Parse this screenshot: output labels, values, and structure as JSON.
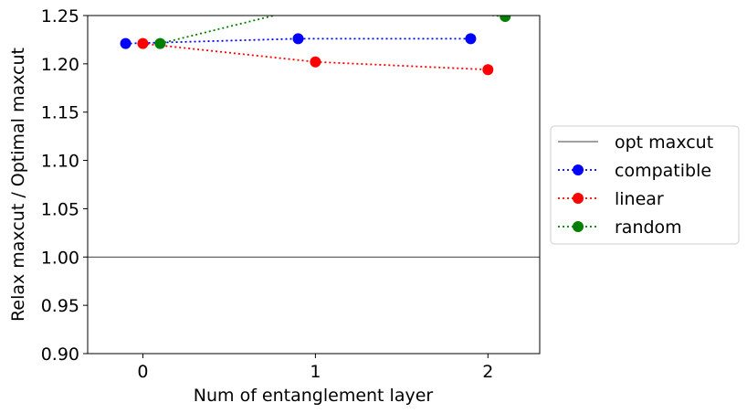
{
  "chart_data": {
    "type": "line",
    "xlabel": "Num of entanglement layer",
    "ylabel": "Relax maxcut / Optimal maxcut",
    "xlim": [
      -0.32,
      2.3
    ],
    "ylim": [
      0.9,
      1.25
    ],
    "xticks": [
      0,
      1,
      2
    ],
    "xtick_labels": [
      "0",
      "1",
      "2"
    ],
    "yticks": [
      0.9,
      0.95,
      1.0,
      1.05,
      1.1,
      1.15,
      1.2,
      1.25
    ],
    "ytick_labels": [
      "0.90",
      "0.95",
      "1.00",
      "1.05",
      "1.10",
      "1.15",
      "1.20",
      "1.25"
    ],
    "grid": false,
    "legend_position": "outside right",
    "reference_line": {
      "name": "opt maxcut",
      "y": 1.0,
      "color": "#000000"
    },
    "series": [
      {
        "name": "compatible",
        "color": "#0000ff",
        "linestyle": "dotted",
        "marker": "circle",
        "x": [
          -0.1,
          0.9,
          1.9
        ],
        "y": [
          1.221,
          1.226,
          1.226
        ]
      },
      {
        "name": "linear",
        "color": "#ff0000",
        "linestyle": "dotted",
        "marker": "circle",
        "x": [
          0,
          1,
          2
        ],
        "y": [
          1.221,
          1.202,
          1.194
        ]
      },
      {
        "name": "random",
        "color": "#008000",
        "linestyle": "dotted",
        "marker": "circle",
        "x": [
          0.1,
          1.1,
          2.1
        ],
        "y": [
          1.221,
          1.265,
          1.249
        ]
      }
    ]
  }
}
